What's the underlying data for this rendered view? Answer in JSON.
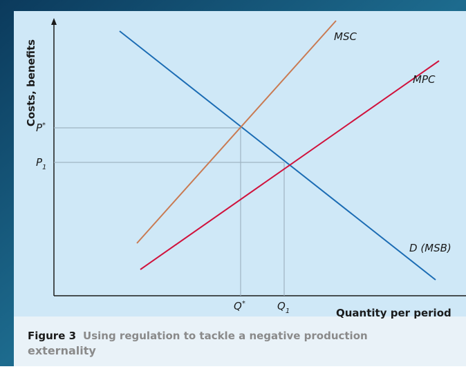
{
  "diagram": {
    "y_axis_label": "Costs, benefits",
    "x_axis_label": "Quantity per period",
    "curves": {
      "msc": "MSC",
      "mpc": "MPC",
      "demand": "D (MSB)"
    },
    "price_labels": [
      {
        "base": "P",
        "sup": "*"
      },
      {
        "base": "P",
        "sub": "1"
      }
    ],
    "quantity_labels": [
      {
        "base": "Q",
        "sup": "*"
      },
      {
        "base": "Q",
        "sub": "1"
      }
    ]
  },
  "caption": {
    "figure": "Figure 3",
    "text": "Using regulation to tackle a negative production",
    "text_line2": "externality"
  }
}
